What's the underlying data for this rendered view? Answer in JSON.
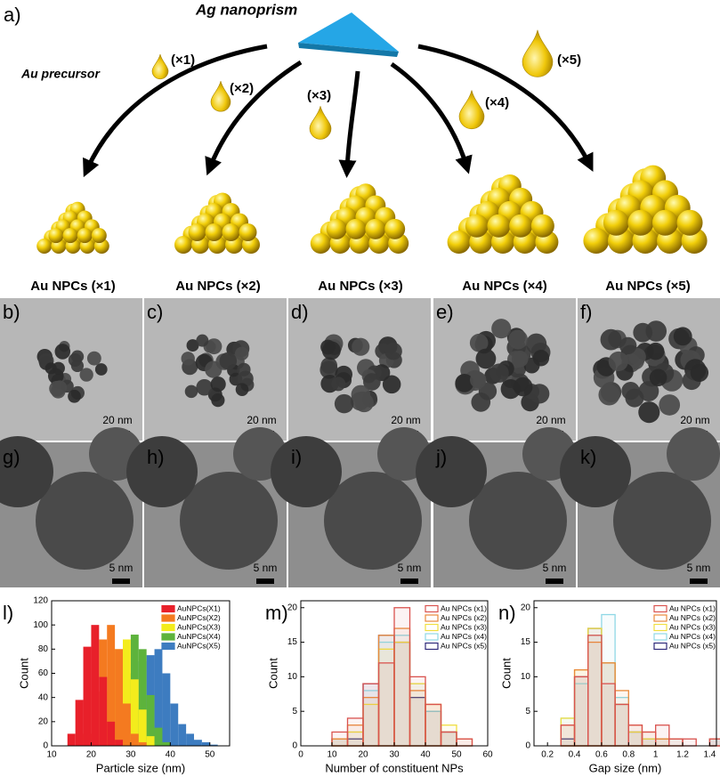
{
  "panel_a": {
    "label": "a)",
    "title": "Ag nanoprism",
    "precursor_label": "Au precursor",
    "amounts": [
      "(×1)",
      "(×2)",
      "(×3)",
      "(×4)",
      "(×5)"
    ],
    "products": [
      "Au NPCs (×1)",
      "Au NPCs (×2)",
      "Au NPCs (×3)",
      "Au NPCs (×4)",
      "Au NPCs (×5)"
    ]
  },
  "tem_low": {
    "labels": [
      "b)",
      "c)",
      "d)",
      "e)",
      "f)"
    ],
    "scale": "20 nm"
  },
  "tem_high": {
    "labels": [
      "g)",
      "h)",
      "i)",
      "j)",
      "k)"
    ],
    "scale": "5 nm"
  },
  "chart_data": [
    {
      "type": "histogram",
      "panel_label": "l)",
      "xlabel": "Particle size (nm)",
      "ylabel": "Count",
      "filled": true,
      "bins": [
        14,
        16,
        18,
        20,
        22,
        24,
        26,
        28,
        30,
        32,
        34,
        36,
        38,
        40,
        42,
        44,
        46,
        48,
        50,
        52
      ],
      "xlim": [
        10,
        55
      ],
      "xticks": [
        10,
        20,
        30,
        40,
        50
      ],
      "ylim": [
        0,
        120
      ],
      "yticks": [
        0,
        20,
        40,
        60,
        80,
        100,
        120
      ],
      "series": [
        {
          "name": "AuNPCs(X1)",
          "color": "#e8202a",
          "values": [
            10,
            38,
            82,
            100,
            57,
            20,
            5,
            0,
            0,
            0,
            0,
            0,
            0,
            0,
            0,
            0,
            0,
            0,
            0
          ]
        },
        {
          "name": "AuNPCs(X2)",
          "color": "#f47a20",
          "values": [
            0,
            0,
            10,
            45,
            88,
            100,
            80,
            35,
            10,
            3,
            0,
            0,
            0,
            0,
            0,
            0,
            0,
            0,
            0
          ]
        },
        {
          "name": "AuNPCs(X3)",
          "color": "#f3ec1c",
          "values": [
            0,
            0,
            0,
            0,
            8,
            45,
            80,
            88,
            55,
            30,
            8,
            0,
            0,
            0,
            0,
            0,
            0,
            0,
            0
          ]
        },
        {
          "name": "AuNPCs(X4)",
          "color": "#5db33c",
          "values": [
            0,
            0,
            0,
            0,
            0,
            5,
            20,
            60,
            92,
            80,
            42,
            15,
            3,
            0,
            0,
            0,
            0,
            0,
            0
          ]
        },
        {
          "name": "AuNPCs(X5)",
          "color": "#3d7cc0",
          "values": [
            0,
            0,
            0,
            0,
            0,
            0,
            0,
            10,
            35,
            70,
            75,
            80,
            60,
            35,
            18,
            10,
            5,
            3,
            1
          ]
        }
      ]
    },
    {
      "type": "histogram",
      "panel_label": "m)",
      "xlabel": "Number of constituent NPs",
      "ylabel": "Count",
      "filled": false,
      "bins": [
        10,
        15,
        20,
        25,
        30,
        35,
        40,
        45,
        50,
        55
      ],
      "xlim": [
        0,
        60
      ],
      "xticks": [
        0,
        10,
        20,
        30,
        40,
        50,
        60
      ],
      "ylim": [
        0,
        21
      ],
      "yticks": [
        0,
        5,
        10,
        15,
        20
      ],
      "series": [
        {
          "name": "Au NPCs (x1)",
          "color": "#d9534f",
          "values": [
            2,
            4,
            9,
            12,
            20,
            10,
            6,
            2,
            1
          ]
        },
        {
          "name": "Au NPCs (x2)",
          "color": "#e98a3c",
          "values": [
            1,
            3,
            7,
            16,
            17,
            8,
            6,
            2,
            1
          ]
        },
        {
          "name": "Au NPCs (x3)",
          "color": "#f0de40",
          "values": [
            1,
            2,
            6,
            14,
            15,
            9,
            6,
            3,
            0
          ]
        },
        {
          "name": "Au NPCs (x4)",
          "color": "#8fd8e6",
          "values": [
            1,
            2,
            8,
            15,
            16,
            9,
            5,
            2,
            0
          ]
        },
        {
          "name": "Au NPCs (x5)",
          "color": "#2e2a7a",
          "values": [
            1,
            1,
            9,
            16,
            15,
            7,
            5,
            2,
            0
          ]
        }
      ]
    },
    {
      "type": "histogram",
      "panel_label": "n)",
      "xlabel": "Gap size (nm)",
      "ylabel": "Count",
      "filled": false,
      "bins": [
        0.3,
        0.4,
        0.5,
        0.6,
        0.7,
        0.8,
        0.9,
        1.0,
        1.1,
        1.2,
        1.3,
        1.4,
        1.5
      ],
      "xlim": [
        0.1,
        1.45
      ],
      "xticks": [
        0.2,
        0.4,
        0.6,
        0.8,
        1.0,
        1.2,
        1.4
      ],
      "ylim": [
        0,
        21
      ],
      "yticks": [
        0,
        5,
        10,
        15,
        20
      ],
      "series": [
        {
          "name": "Au NPCs (x1)",
          "color": "#d9534f",
          "values": [
            3,
            10,
            16,
            9,
            6,
            3,
            2,
            3,
            1,
            1,
            0,
            1
          ]
        },
        {
          "name": "Au NPCs (x2)",
          "color": "#e98a3c",
          "values": [
            3,
            11,
            15,
            12,
            8,
            3,
            2,
            1,
            1,
            0,
            0,
            1
          ]
        },
        {
          "name": "Au NPCs (x3)",
          "color": "#f0de40",
          "values": [
            4,
            11,
            17,
            12,
            6,
            2,
            1,
            1,
            0,
            0,
            0,
            0
          ]
        },
        {
          "name": "Au NPCs (x4)",
          "color": "#8fd8e6",
          "values": [
            4,
            9,
            16,
            19,
            7,
            2,
            1,
            0,
            1,
            0,
            0,
            1
          ]
        },
        {
          "name": "Au NPCs (x5)",
          "color": "#2e2a7a",
          "values": [
            1,
            10,
            17,
            12,
            6,
            2,
            1,
            1,
            0,
            0,
            0,
            1
          ]
        }
      ]
    }
  ]
}
